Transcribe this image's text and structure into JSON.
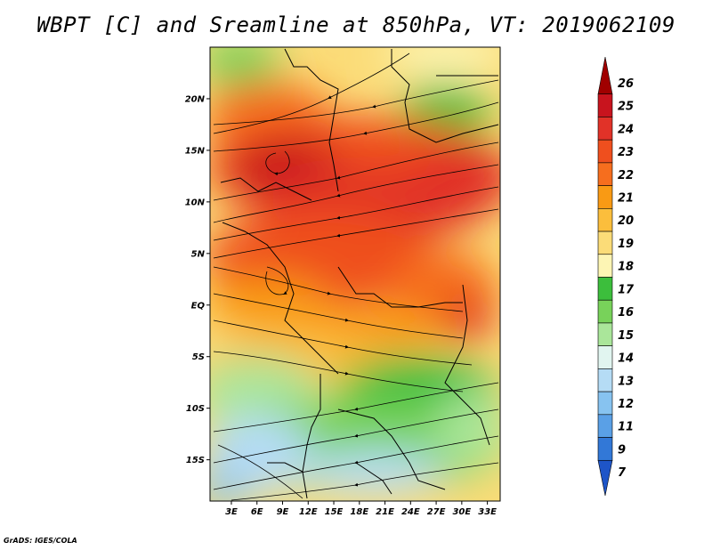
{
  "title": "WBPT [C] and Sreamline at 850hPa, VT: 2019062109",
  "credit": "GrADS: IGES/COLA",
  "lat_ticks": [
    "20N",
    "15N",
    "10N",
    "5N",
    "EQ",
    "5S",
    "10S",
    "15S"
  ],
  "lat_values": [
    20,
    15,
    10,
    5,
    0,
    -5,
    -10,
    -15
  ],
  "lon_ticks": [
    "3E",
    "6E",
    "9E",
    "12E",
    "15E",
    "18E",
    "21E",
    "24E",
    "27E",
    "30E",
    "33E"
  ],
  "lon_values": [
    3,
    6,
    9,
    12,
    15,
    18,
    21,
    24,
    27,
    30,
    33
  ],
  "extent": {
    "lon_min": 0.5,
    "lon_max": 34.5,
    "lat_min": -19,
    "lat_max": 25
  },
  "colorbar": {
    "labels": [
      "26",
      "25",
      "24",
      "23",
      "22",
      "21",
      "20",
      "19",
      "18",
      "17",
      "16",
      "15",
      "14",
      "13",
      "12",
      "11",
      "9",
      "7"
    ],
    "colors": [
      "#a00000",
      "#c8141e",
      "#e13228",
      "#ef4f1e",
      "#f66e1e",
      "#f99a14",
      "#fbbe3c",
      "#fbdc78",
      "#fdf5b4",
      "#3cbe3c",
      "#78d25a",
      "#aae69a",
      "#e1f5f0",
      "#b5dcf5",
      "#87c3f0",
      "#5aa0e6",
      "#3278d7",
      "#1e55c8"
    ]
  }
}
